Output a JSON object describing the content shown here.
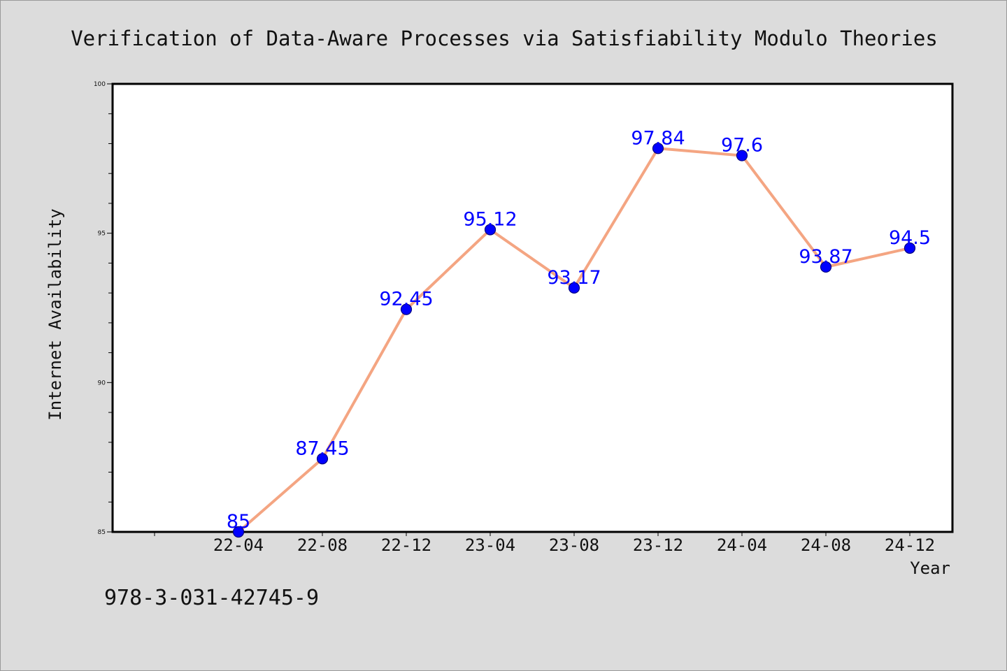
{
  "chart_data": {
    "type": "line",
    "title": "Verification of Data-Aware Processes via Satisfiability Modulo Theories",
    "xlabel": "Year",
    "ylabel": "Internet Availability",
    "categories": [
      "22-04",
      "22-08",
      "22-12",
      "23-04",
      "23-08",
      "23-12",
      "24-04",
      "24-08",
      "24-12"
    ],
    "series": [
      {
        "values": [
          85,
          87.45,
          92.45,
          95.12,
          93.17,
          97.84,
          97.6,
          93.87,
          94.5
        ],
        "labels": [
          "85",
          "87.45",
          "92.45",
          "95.12",
          "93.17",
          "97.84",
          "97.6",
          "93.87",
          "94.5"
        ]
      }
    ],
    "ylim": [
      85,
      100
    ],
    "yticks": [
      85,
      90,
      95,
      100
    ],
    "grid": false,
    "legend": "none",
    "annotation": "978-3-031-42745-9",
    "colors": {
      "line": "#f4a582",
      "marker": "#0000ff",
      "marker_edge": "#000080",
      "data_label": "#0000ff",
      "background": "#dcdcdc",
      "plot_area": "#ffffff"
    }
  }
}
